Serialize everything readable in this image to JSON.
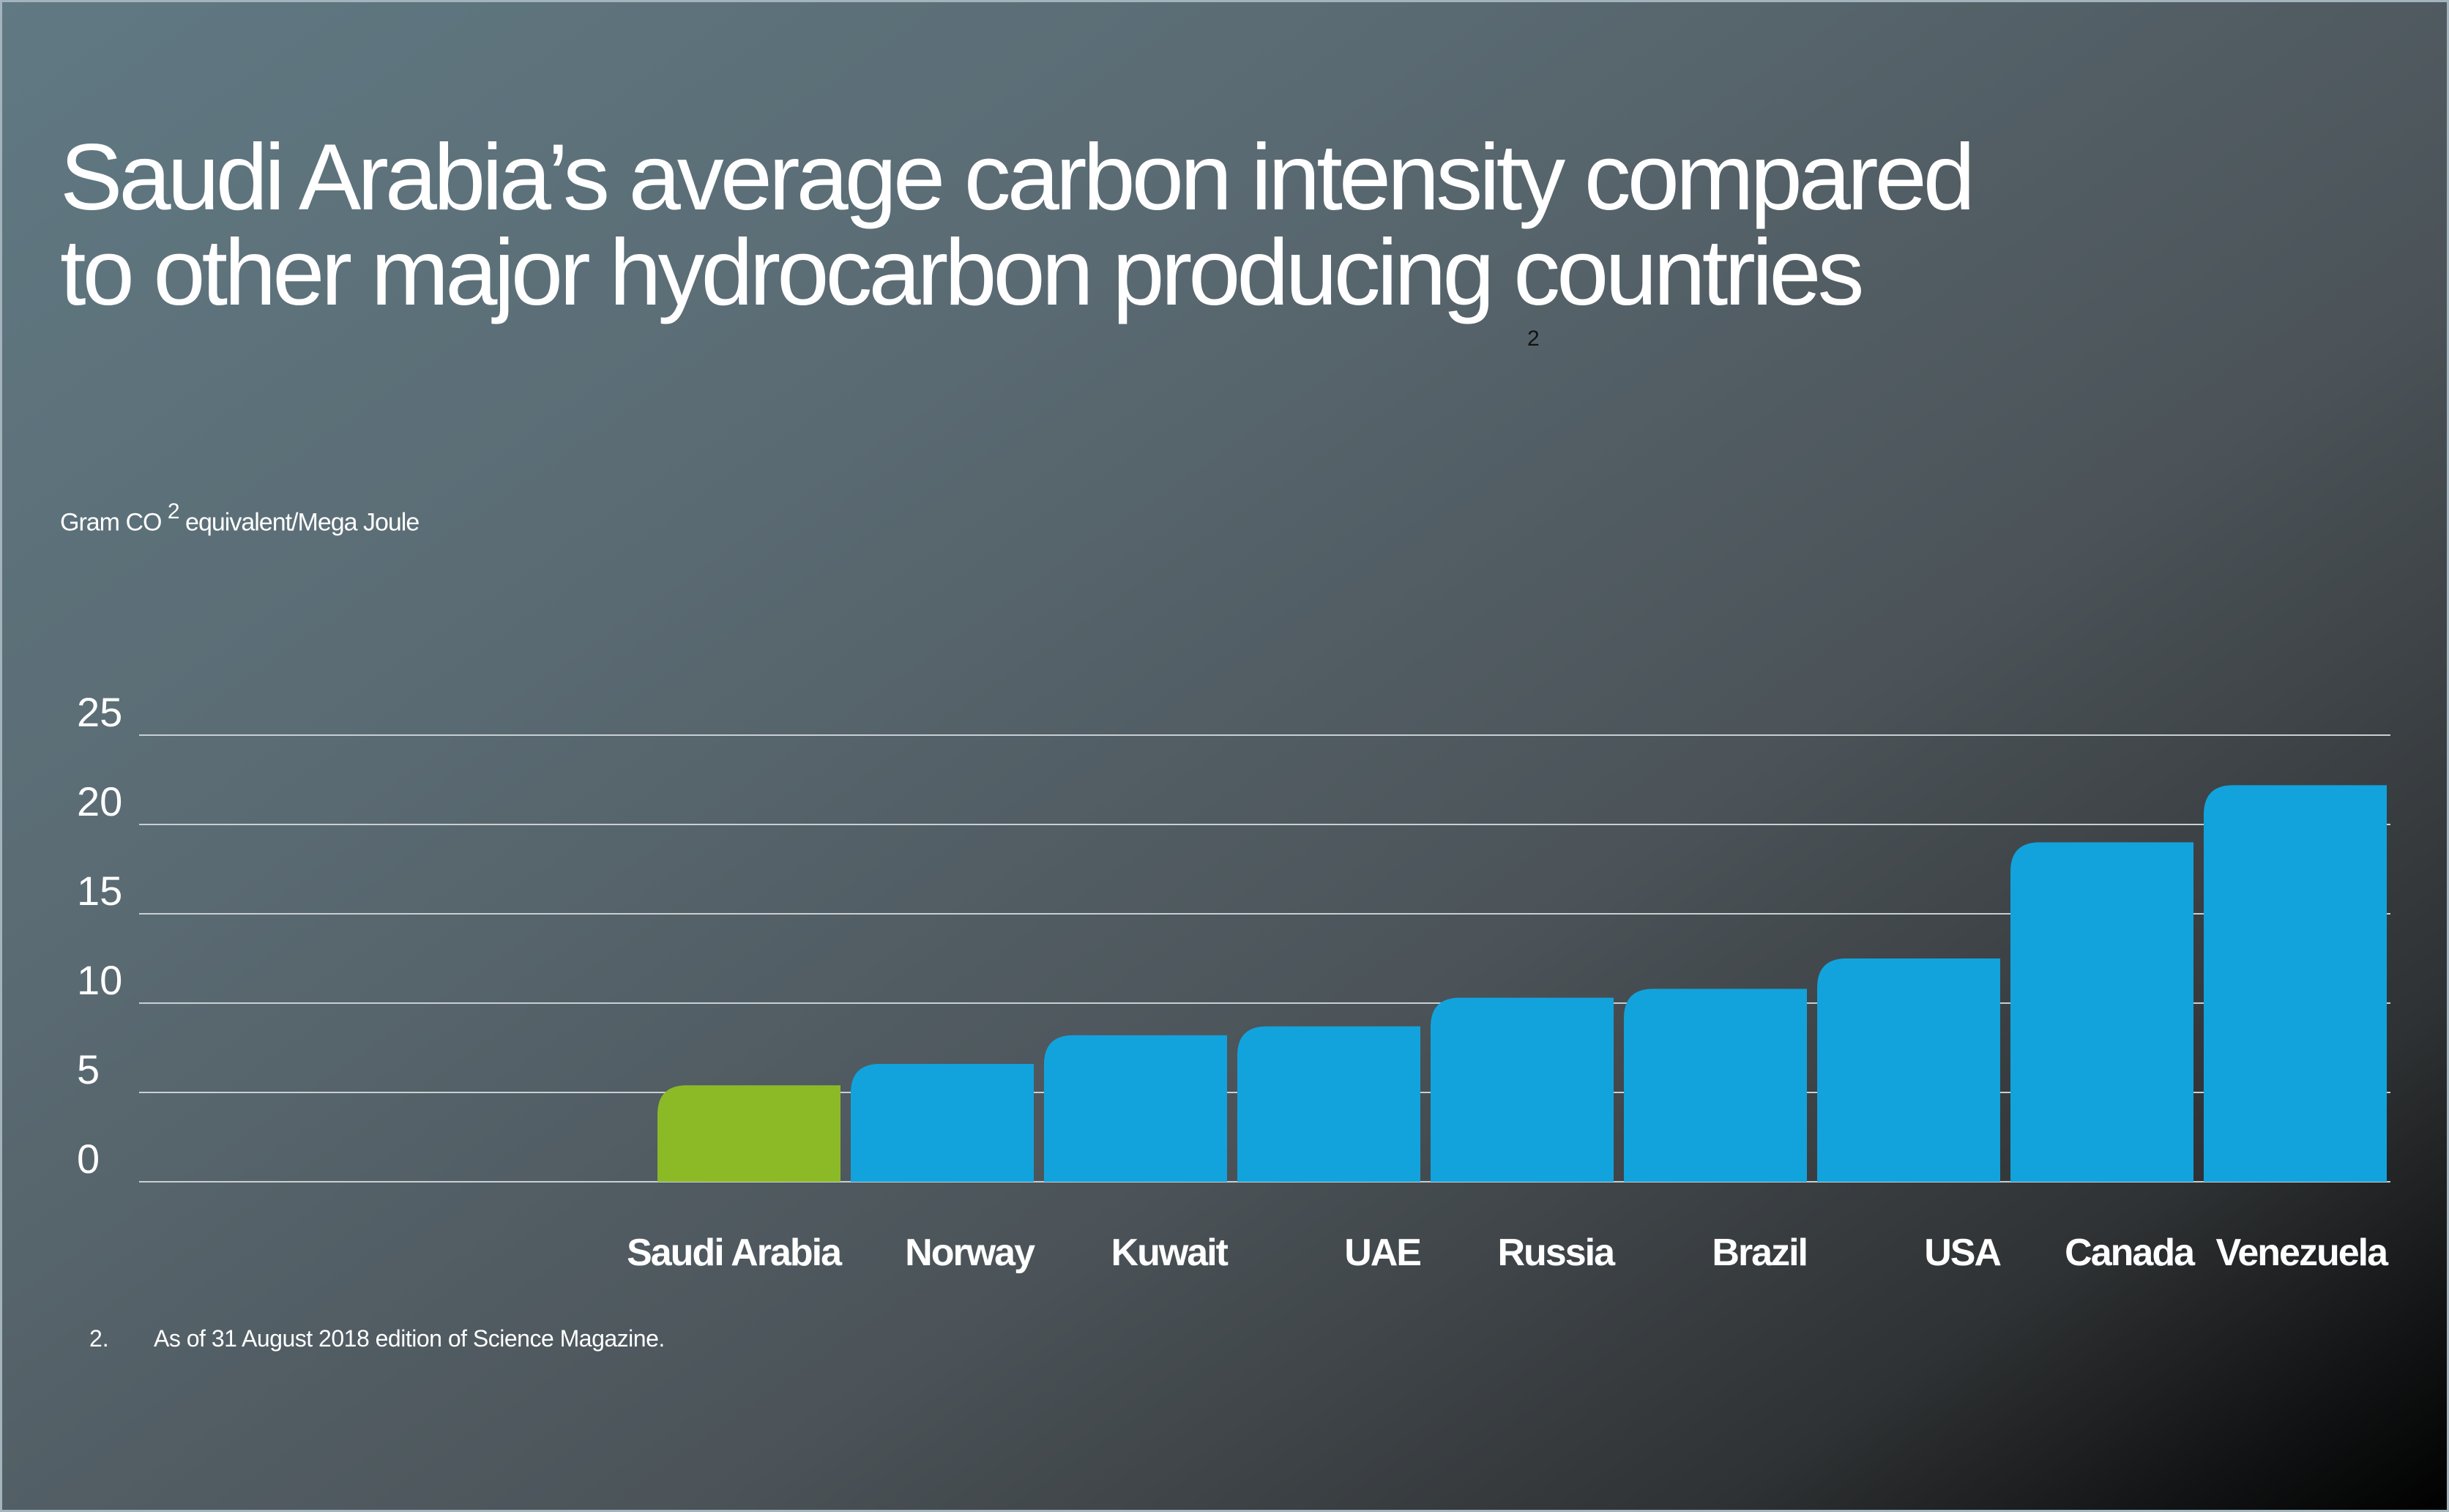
{
  "title_lines": [
    "Saudi Arabia’s average carbon intensity compared",
    "to other major hydrocarbon producing countries"
  ],
  "title_reference": "2",
  "footnote": {
    "number": "2.",
    "text": "As of 31 August 2018 edition of Science Magazine."
  },
  "chart_data": {
    "type": "bar",
    "ylabel_parts": {
      "before": "Gram CO",
      "sup": "2",
      "after": " equivalent/Mega Joule"
    },
    "categories": [
      "Saudi Arabia",
      "Norway",
      "Kuwait",
      "UAE",
      "Russia",
      "Brazil",
      "USA",
      "Canada",
      "Venezuela"
    ],
    "values": [
      5.4,
      6.6,
      8.2,
      8.7,
      10.3,
      10.8,
      12.5,
      19.0,
      22.2
    ],
    "ylim": [
      0,
      25
    ],
    "yticks": [
      0,
      5,
      10,
      15,
      20,
      25
    ],
    "grid": true,
    "colors": {
      "highlight": "#8cba27",
      "default": "#12a3dd",
      "grid": "#c8d0d4"
    },
    "highlight_category": "Saudi Arabia"
  }
}
